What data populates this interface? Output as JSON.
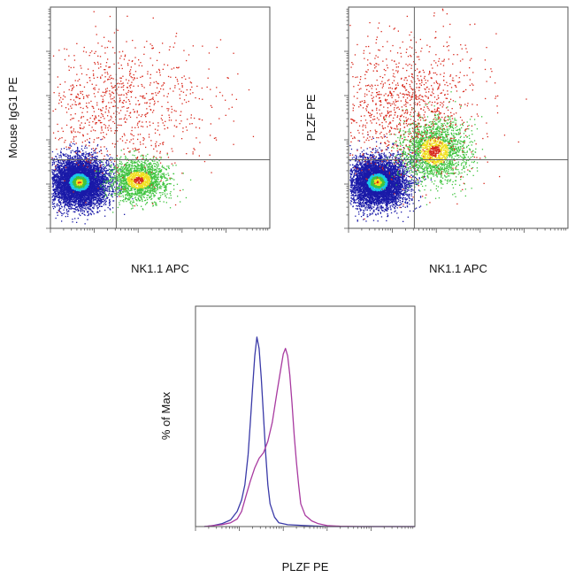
{
  "colors": {
    "frame": "#555555",
    "gate": "#666666",
    "density_low": "#1a1aa8",
    "density_mid": "#19c8e8",
    "density_midhigh": "#3fc43f",
    "density_high": "#f0e020",
    "density_peak": "#d8281c",
    "isotype_line": "#3a3aa8",
    "plzf_line": "#a83aa0"
  },
  "chart_data": [
    {
      "type": "scatter",
      "subtype": "flow-cytometry density dot plot",
      "xlabel": "NK1.1 APC",
      "ylabel": "Mouse IgG1 PE",
      "axis_scale": "log",
      "tick_labels_printed": false,
      "grid": false,
      "quadrant_gate": {
        "x": 0.3,
        "y": 0.31
      },
      "populations": [
        {
          "name": "",
          "cx": 0.13,
          "cy": 0.21,
          "sx": 0.065,
          "sy": 0.055,
          "share": 0.7,
          "density": "peak"
        },
        {
          "name": "",
          "cx": 0.4,
          "cy": 0.22,
          "sx": 0.065,
          "sy": 0.045,
          "share": 0.19,
          "density": "medium"
        },
        {
          "name": "",
          "cx": 0.28,
          "cy": 0.55,
          "sx": 0.22,
          "sy": 0.16,
          "share": 0.11,
          "density": "sparse"
        }
      ]
    },
    {
      "type": "scatter",
      "subtype": "flow-cytometry density dot plot",
      "xlabel": "NK1.1 APC",
      "ylabel": "PLZF PE",
      "axis_scale": "log",
      "tick_labels_printed": false,
      "grid": false,
      "quadrant_gate": {
        "x": 0.3,
        "y": 0.31
      },
      "populations": [
        {
          "name": "",
          "cx": 0.13,
          "cy": 0.21,
          "sx": 0.065,
          "sy": 0.055,
          "share": 0.65,
          "density": "peak"
        },
        {
          "name": "",
          "cx": 0.39,
          "cy": 0.35,
          "sx": 0.075,
          "sy": 0.07,
          "share": 0.22,
          "density": "medium"
        },
        {
          "name": "",
          "cx": 0.25,
          "cy": 0.55,
          "sx": 0.18,
          "sy": 0.16,
          "share": 0.13,
          "density": "sparse"
        }
      ]
    },
    {
      "type": "line",
      "subtype": "flow-cytometry histogram overlay",
      "xlabel": "PLZF PE",
      "ylabel": "% of Max",
      "axis_scale": "log",
      "tick_labels_printed": false,
      "ylim": [
        0,
        100
      ],
      "grid": false,
      "series": [
        {
          "name": "",
          "color": "#3a3aa8",
          "x": [
            0.04,
            0.08,
            0.12,
            0.16,
            0.19,
            0.21,
            0.225,
            0.24,
            0.25,
            0.26,
            0.27,
            0.28,
            0.29,
            0.3,
            0.31,
            0.32,
            0.33,
            0.34,
            0.36,
            0.38,
            0.42,
            0.5,
            0.6,
            0.75,
            0.9,
            1.0
          ],
          "y": [
            0,
            0.5,
            1.5,
            3.5,
            8,
            14,
            22,
            38,
            55,
            73,
            90,
            100,
            94,
            78,
            58,
            38,
            22,
            12,
            5,
            2,
            1,
            0.5,
            0,
            0,
            0,
            0
          ]
        },
        {
          "name": "",
          "color": "#a83aa0",
          "x": [
            0.04,
            0.08,
            0.12,
            0.16,
            0.19,
            0.21,
            0.23,
            0.25,
            0.27,
            0.29,
            0.31,
            0.33,
            0.35,
            0.37,
            0.39,
            0.4,
            0.41,
            0.42,
            0.43,
            0.44,
            0.45,
            0.46,
            0.47,
            0.48,
            0.5,
            0.53,
            0.56,
            0.6,
            0.66,
            0.75,
            0.9,
            1.0
          ],
          "y": [
            0,
            0.5,
            1,
            2,
            4,
            8,
            16,
            24,
            31,
            36,
            39,
            45,
            55,
            70,
            84,
            91,
            94,
            90,
            80,
            65,
            48,
            34,
            22,
            12,
            6,
            3,
            1.5,
            0.5,
            0.2,
            0,
            0,
            0
          ]
        }
      ]
    }
  ]
}
